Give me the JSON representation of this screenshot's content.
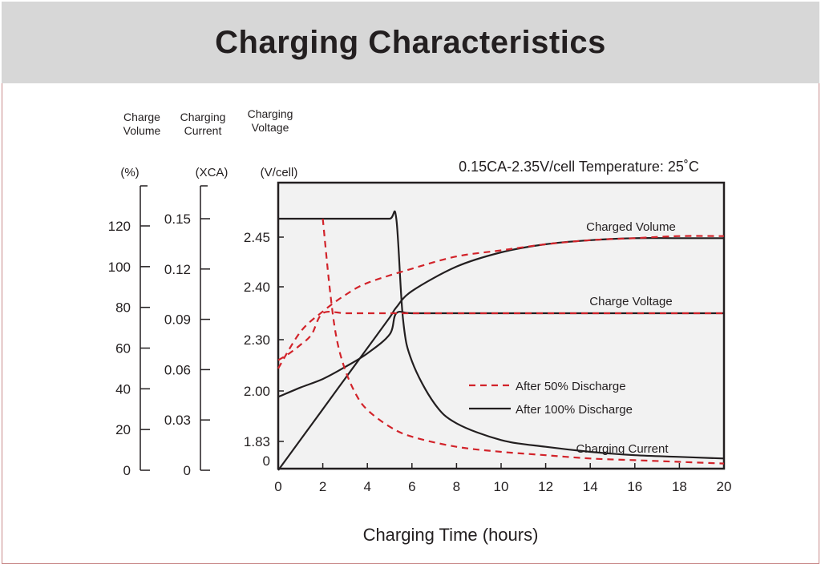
{
  "title": "Charging Characteristics",
  "chart_data": {
    "type": "line",
    "title": "Charging Characteristics",
    "subtitle": "0.15CA-2.35V/cell   Temperature: 25˚C",
    "xlabel": "Charging Time (hours)",
    "xlim": [
      0,
      20
    ],
    "x_ticks": [
      "0",
      "2",
      "4",
      "6",
      "8",
      "10",
      "12",
      "14",
      "16",
      "18",
      "20"
    ],
    "y_axes": [
      {
        "name": "Charge Volume",
        "header": [
          "Charge",
          "Volume"
        ],
        "unit": "(%)",
        "ticks": [
          "0",
          "20",
          "40",
          "60",
          "80",
          "100",
          "120"
        ]
      },
      {
        "name": "Charging Current",
        "header": [
          "Charging",
          "Current"
        ],
        "unit": "(XCA)",
        "ticks": [
          "0",
          "0.03",
          "0.06",
          "0.09",
          "0.12",
          "0.15"
        ]
      },
      {
        "name": "Charging Voltage",
        "header": [
          "Charging",
          "Voltage"
        ],
        "unit": "(V/cell)",
        "ticks": [
          "0",
          "1.83",
          "2.00",
          "2.30",
          "2.40",
          "2.45"
        ]
      }
    ],
    "legend": {
      "placement": "inside-right",
      "entries": [
        {
          "label": "After 50% Discharge",
          "style": "dashed",
          "color": "#d2232a"
        },
        {
          "label": "After 100%  Discharge",
          "style": "solid",
          "color": "#231f20"
        }
      ]
    },
    "annotations": [
      "Charged Volume",
      "Charge Voltage",
      "Charging Current"
    ],
    "series": [
      {
        "group": "After 100%  Discharge",
        "curve": "Charged Volume",
        "axis": "Charge Volume (%)",
        "x": [
          0,
          1,
          2,
          3,
          4,
          5,
          5.3,
          6,
          8,
          10,
          12,
          14,
          16,
          18,
          20
        ],
        "y": [
          0,
          15,
          30,
          45,
          60,
          75,
          80,
          88,
          100,
          107,
          111,
          113,
          114,
          114,
          114
        ]
      },
      {
        "group": "After 100%  Discharge",
        "curve": "Charge Voltage",
        "axis": "Charging Voltage (V/cell)",
        "x": [
          0,
          1,
          2,
          3,
          4,
          5,
          5.3,
          6,
          8,
          10,
          12,
          14,
          16,
          18,
          20
        ],
        "y": [
          1.98,
          2.02,
          2.07,
          2.14,
          2.22,
          2.31,
          2.35,
          2.35,
          2.35,
          2.35,
          2.35,
          2.35,
          2.35,
          2.35,
          2.35
        ]
      },
      {
        "group": "After 100%  Discharge",
        "curve": "Charging Current",
        "axis": "Charging Current (XCA)",
        "x": [
          0,
          1,
          2,
          3,
          4,
          5,
          5.3,
          5.6,
          6,
          7,
          8,
          10,
          12,
          14,
          16,
          18,
          20
        ],
        "y": [
          0.15,
          0.15,
          0.15,
          0.15,
          0.15,
          0.15,
          0.15,
          0.09,
          0.065,
          0.04,
          0.028,
          0.018,
          0.014,
          0.011,
          0.009,
          0.008,
          0.007
        ]
      },
      {
        "group": "After 50% Discharge",
        "curve": "Charged Volume",
        "axis": "Charge Volume (%)",
        "x": [
          0,
          1,
          2,
          3,
          4,
          6,
          8,
          10,
          12,
          14,
          16,
          18,
          20
        ],
        "y": [
          50,
          68,
          78,
          86,
          92,
          99,
          105,
          108,
          111,
          113,
          114,
          115,
          115
        ]
      },
      {
        "group": "After 50% Discharge",
        "curve": "Charge Voltage",
        "axis": "Charging Voltage (V/cell)",
        "x": [
          0,
          0.5,
          1,
          1.5,
          2,
          3,
          4,
          6,
          8,
          10,
          12,
          14,
          16,
          18,
          20
        ],
        "y": [
          2.18,
          2.22,
          2.27,
          2.31,
          2.35,
          2.35,
          2.35,
          2.35,
          2.35,
          2.35,
          2.35,
          2.35,
          2.35,
          2.35,
          2.35
        ]
      },
      {
        "group": "After 50% Discharge",
        "curve": "Charging Current",
        "axis": "Charging Current (XCA)",
        "x": [
          2,
          2.3,
          2.6,
          3,
          3.5,
          4,
          5,
          6,
          8,
          10,
          12,
          14,
          16,
          18,
          20
        ],
        "y": [
          0.15,
          0.11,
          0.08,
          0.06,
          0.045,
          0.036,
          0.026,
          0.02,
          0.014,
          0.011,
          0.009,
          0.007,
          0.006,
          0.005,
          0.004
        ]
      }
    ]
  },
  "colors": {
    "header_bg": "#d7d7d7",
    "plot_bg": "#f2f2f2",
    "dashed": "#d2232a",
    "solid": "#231f20",
    "frame": "#c98a8a"
  }
}
